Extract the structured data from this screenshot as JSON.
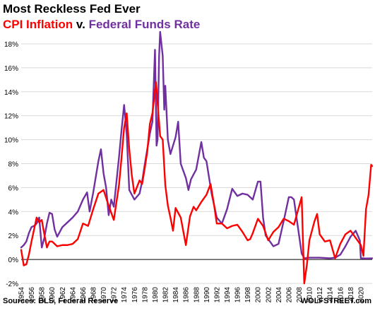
{
  "chart_data": {
    "type": "line",
    "title": "Most Reckless Fed Ever",
    "subtitle": {
      "part1": "CPI Inflation",
      "connector": "v.",
      "part2": "Federal Funds Rate"
    },
    "xlabel": "",
    "ylabel": "",
    "xlim": [
      1954,
      2022.2
    ],
    "ylim": [
      -2,
      18
    ],
    "grid": true,
    "legend": "none",
    "y_ticks": [
      "-2%",
      "0%",
      "2%",
      "4%",
      "6%",
      "8%",
      "10%",
      "12%",
      "14%",
      "16%",
      "18%"
    ],
    "x_ticks": [
      "1954",
      "1956",
      "1958",
      "1960",
      "1962",
      "1964",
      "1966",
      "1968",
      "1970",
      "1972",
      "1974",
      "1976",
      "1978",
      "1980",
      "1982",
      "1984",
      "1986",
      "1988",
      "1990",
      "1992",
      "1994",
      "1996",
      "1998",
      "2000",
      "2002",
      "2004",
      "2006",
      "2008",
      "2010",
      "2012",
      "2014",
      "2016",
      "2018",
      "2020"
    ],
    "series": [
      {
        "name": "CPI Inflation",
        "color": "#ff0000",
        "x": [
          1954,
          1954.5,
          1955,
          1955.5,
          1956,
          1956.5,
          1957,
          1957.5,
          1958,
          1958.5,
          1959,
          1959.5,
          1960,
          1961,
          1962,
          1963,
          1964,
          1965,
          1966,
          1967,
          1968,
          1969,
          1970,
          1971,
          1972,
          1973,
          1973.5,
          1974,
          1974.5,
          1975,
          1975.5,
          1976,
          1977,
          1977.5,
          1978,
          1978.5,
          1979,
          1979.5,
          1980.2,
          1980.6,
          1981,
          1981.5,
          1982,
          1982.5,
          1983,
          1983.5,
          1984,
          1985,
          1986,
          1986.8,
          1987.5,
          1988,
          1989,
          1990,
          1990.8,
          1991.5,
          1992,
          1993,
          1994,
          1995,
          1996,
          1997,
          1998,
          1998.5,
          1999,
          2000,
          2001,
          2002,
          2003,
          2004,
          2005,
          2006,
          2007,
          2008.5,
          2009,
          2009.5,
          2010,
          2011,
          2011.5,
          2012,
          2013,
          2014,
          2015,
          2016,
          2017,
          2018,
          2019,
          2020,
          2020.5,
          2021,
          2021.5,
          2022,
          2022.2
        ],
        "y": [
          0.8,
          -0.5,
          -0.4,
          0.4,
          1.5,
          2.5,
          3.5,
          3.1,
          3.3,
          2.1,
          1.0,
          1.5,
          1.5,
          1.1,
          1.2,
          1.2,
          1.3,
          1.7,
          3.0,
          2.8,
          4.2,
          5.5,
          5.8,
          4.5,
          3.3,
          6.2,
          8.5,
          11.0,
          12.2,
          9.2,
          7.0,
          5.5,
          6.6,
          6.3,
          7.6,
          9.0,
          11.3,
          12.2,
          14.8,
          12.5,
          10.3,
          10.0,
          6.2,
          4.5,
          3.5,
          2.4,
          4.3,
          3.5,
          1.2,
          3.6,
          4.4,
          4.1,
          4.8,
          5.4,
          6.3,
          4.5,
          3.0,
          3.0,
          2.6,
          2.8,
          2.9,
          2.3,
          1.6,
          1.7,
          2.2,
          3.4,
          2.8,
          1.6,
          2.3,
          2.7,
          3.4,
          3.2,
          2.9,
          5.2,
          -2.0,
          -0.5,
          1.6,
          3.2,
          3.8,
          2.1,
          1.5,
          1.6,
          0.1,
          1.3,
          2.1,
          2.4,
          1.8,
          1.2,
          0.3,
          4.2,
          5.4,
          7.9,
          7.8
        ]
      },
      {
        "name": "Federal Funds Rate",
        "color": "#7030a0",
        "x": [
          1954,
          1954.5,
          1955,
          1955.5,
          1956,
          1956.5,
          1957,
          1957.5,
          1958,
          1958.5,
          1959,
          1959.5,
          1960,
          1960.5,
          1961,
          1962,
          1963,
          1964,
          1965,
          1966,
          1966.8,
          1967.3,
          1968,
          1969,
          1969.5,
          1970,
          1970.5,
          1971,
          1971.5,
          1972,
          1973,
          1973.5,
          1974,
          1974.5,
          1975,
          1976,
          1977,
          1977.5,
          1978,
          1979,
          1979.5,
          1980,
          1980.3,
          1980.5,
          1980.8,
          1981,
          1981.5,
          1981.8,
          1982,
          1982.5,
          1983,
          1984,
          1984.5,
          1985,
          1986,
          1986.5,
          1987,
          1988,
          1989,
          1989.5,
          1990,
          1991,
          1992,
          1993,
          1994,
          1995,
          1996,
          1997,
          1998,
          1999,
          2000,
          2000.5,
          2001,
          2001.5,
          2002,
          2003,
          2004,
          2005,
          2006,
          2006.5,
          2007,
          2008,
          2008.5,
          2009,
          2010,
          2012,
          2014,
          2015,
          2016,
          2017,
          2018,
          2019,
          2019.8,
          2020,
          2020.5,
          2021,
          2022.2
        ],
        "y": [
          1.0,
          1.2,
          1.5,
          2.2,
          2.7,
          2.8,
          3.0,
          3.5,
          1.0,
          1.8,
          3.0,
          3.9,
          3.8,
          2.5,
          1.9,
          2.7,
          3.1,
          3.5,
          4.0,
          5.0,
          5.6,
          4.0,
          5.6,
          8.2,
          9.2,
          7.2,
          6.0,
          3.7,
          5.0,
          4.4,
          8.5,
          10.8,
          12.9,
          10.5,
          5.8,
          5.0,
          5.5,
          6.5,
          7.9,
          10.5,
          11.5,
          17.5,
          9.5,
          10.0,
          17.0,
          19.0,
          17.0,
          12.5,
          14.5,
          10.0,
          8.8,
          10.2,
          11.5,
          8.0,
          6.8,
          5.8,
          6.7,
          7.5,
          9.8,
          8.5,
          8.2,
          5.5,
          3.5,
          3.0,
          4.2,
          5.9,
          5.3,
          5.5,
          5.4,
          5.0,
          6.5,
          6.5,
          3.5,
          2.0,
          1.7,
          1.1,
          1.3,
          3.2,
          5.2,
          5.2,
          5.0,
          2.0,
          0.5,
          0.1,
          0.15,
          0.15,
          0.1,
          0.15,
          0.4,
          1.1,
          1.9,
          2.4,
          1.6,
          0.1,
          0.1,
          0.08,
          0.1
        ]
      }
    ]
  },
  "footer": {
    "sources": "Sources: BLS, Federal Reserve",
    "brand": "WOLFSTREET.com"
  }
}
